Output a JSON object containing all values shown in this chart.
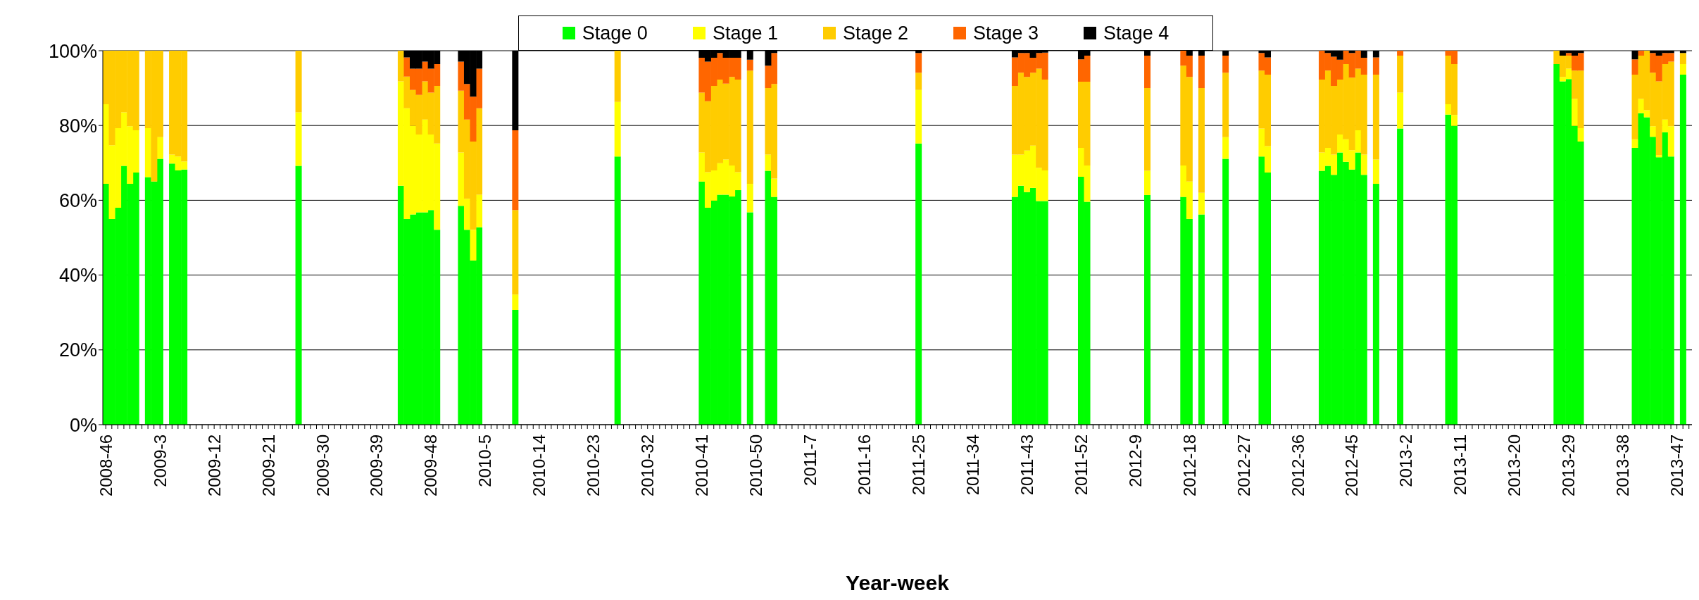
{
  "chart_data": {
    "type": "bar",
    "stacked": true,
    "xlabel": "Year-week",
    "legend": "top",
    "grid": "y",
    "ylim": [
      0,
      100
    ],
    "yticks": [
      {
        "value": 0,
        "label": "0%"
      },
      {
        "value": 20,
        "label": "20%"
      },
      {
        "value": 40,
        "label": "40%"
      },
      {
        "value": 60,
        "label": "60%"
      },
      {
        "value": 80,
        "label": "80%"
      },
      {
        "value": 100,
        "label": "100%"
      }
    ],
    "categories": [
      "2008-46",
      null,
      null,
      null,
      null,
      null,
      null,
      null,
      null,
      "2009-3",
      null,
      null,
      null,
      null,
      null,
      null,
      null,
      null,
      "2009-12",
      null,
      null,
      null,
      null,
      null,
      null,
      null,
      null,
      "2009-21",
      null,
      null,
      null,
      null,
      null,
      null,
      null,
      null,
      "2009-30",
      null,
      null,
      null,
      null,
      null,
      null,
      null,
      null,
      "2009-39",
      null,
      null,
      null,
      null,
      null,
      null,
      null,
      null,
      "2009-48",
      null,
      null,
      null,
      null,
      null,
      null,
      null,
      null,
      "2010-5",
      null,
      null,
      null,
      null,
      null,
      null,
      null,
      null,
      "2010-14",
      null,
      null,
      null,
      null,
      null,
      null,
      null,
      null,
      "2010-23",
      null,
      null,
      null,
      null,
      null,
      null,
      null,
      null,
      "2010-32",
      null,
      null,
      null,
      null,
      null,
      null,
      null,
      null,
      "2010-41",
      null,
      null,
      null,
      null,
      null,
      null,
      null,
      null,
      "2010-50",
      null,
      null,
      null,
      null,
      null,
      null,
      null,
      null,
      "2011-7",
      null,
      null,
      null,
      null,
      null,
      null,
      null,
      null,
      "2011-16",
      null,
      null,
      null,
      null,
      null,
      null,
      null,
      null,
      "2011-25",
      null,
      null,
      null,
      null,
      null,
      null,
      null,
      null,
      "2011-34",
      null,
      null,
      null,
      null,
      null,
      null,
      null,
      null,
      "2011-43",
      null,
      null,
      null,
      null,
      null,
      null,
      null,
      null,
      "2011-52",
      null,
      null,
      null,
      null,
      null,
      null,
      null,
      null,
      "2012-9",
      null,
      null,
      null,
      null,
      null,
      null,
      null,
      null,
      "2012-18",
      null,
      null,
      null,
      null,
      null,
      null,
      null,
      null,
      "2012-27",
      null,
      null,
      null,
      null,
      null,
      null,
      null,
      null,
      "2012-36",
      null,
      null,
      null,
      null,
      null,
      null,
      null,
      null,
      "2012-45",
      null,
      null,
      null,
      null,
      null,
      null,
      null,
      null,
      "2013-2",
      null,
      null,
      null,
      null,
      null,
      null,
      null,
      null,
      "2013-11",
      null,
      null,
      null,
      null,
      null,
      null,
      null,
      null,
      "2013-20",
      null,
      null,
      null,
      null,
      null,
      null,
      null,
      null,
      "2013-29",
      null,
      null,
      null,
      null,
      null,
      null,
      null,
      null,
      "2013-38",
      null,
      null,
      null,
      null,
      null,
      null,
      null,
      null,
      "2013-47",
      null,
      null
    ],
    "series": [
      {
        "name": "Stage 0",
        "color": "#00ff00",
        "values": [
          64.4,
          55,
          58,
          69.2,
          64.4,
          67.4,
          null,
          66.2,
          65,
          71.1,
          null,
          69.8,
          68,
          68.2,
          null,
          null,
          null,
          null,
          null,
          null,
          null,
          null,
          null,
          null,
          null,
          null,
          null,
          null,
          null,
          null,
          null,
          null,
          69.2,
          null,
          null,
          null,
          null,
          null,
          null,
          null,
          null,
          null,
          null,
          null,
          null,
          null,
          null,
          null,
          null,
          63.9,
          55,
          56.2,
          56.8,
          56.8,
          57.4,
          52.1,
          null,
          null,
          null,
          58.5,
          52.1,
          43.9,
          52.8,
          null,
          null,
          null,
          null,
          null,
          30.7,
          null,
          null,
          null,
          null,
          null,
          null,
          null,
          null,
          null,
          null,
          null,
          null,
          null,
          null,
          null,
          null,
          71.7,
          null,
          null,
          null,
          null,
          null,
          null,
          null,
          null,
          null,
          null,
          null,
          null,
          null,
          65,
          58,
          59.9,
          61.5,
          61.5,
          61,
          62.7,
          null,
          56.8,
          null,
          null,
          67.9,
          60.9,
          null,
          null,
          null,
          null,
          null,
          null,
          null,
          null,
          null,
          null,
          null,
          null,
          null,
          null,
          null,
          null,
          null,
          null,
          null,
          null,
          null,
          null,
          null,
          75.2,
          null,
          null,
          null,
          null,
          null,
          null,
          null,
          null,
          null,
          null,
          null,
          null,
          null,
          null,
          null,
          60.9,
          63.9,
          62.2,
          63.3,
          59.8,
          59.8,
          null,
          null,
          null,
          null,
          null,
          66.3,
          59.6,
          null,
          null,
          null,
          null,
          null,
          null,
          null,
          null,
          null,
          61.4,
          null,
          null,
          null,
          null,
          null,
          60.9,
          55,
          null,
          56.2,
          null,
          null,
          null,
          71.1,
          null,
          null,
          null,
          null,
          null,
          71.7,
          67.4,
          null,
          null,
          null,
          null,
          null,
          null,
          null,
          null,
          67.9,
          69.2,
          66.8,
          72.8,
          70.3,
          68.2,
          72.8,
          66.8,
          null,
          64.4,
          null,
          null,
          null,
          79.2,
          null,
          null,
          null,
          null,
          null,
          null,
          null,
          82.9,
          79.9,
          null,
          null,
          null,
          null,
          null,
          null,
          null,
          null,
          null,
          null,
          null,
          null,
          null,
          null,
          null,
          null,
          96.4,
          91.8,
          92.4,
          79.9,
          75.7,
          null,
          null,
          null,
          null,
          null,
          null,
          null,
          null,
          74,
          83.3,
          82.2,
          77,
          71.5,
          78.2,
          71.7,
          null,
          93.6,
          null
        ]
      },
      {
        "name": "Stage 1",
        "color": "#ffff00",
        "values": [
          21.3,
          19.7,
          21.3,
          14.3,
          15.4,
          11.3,
          null,
          13.1,
          0,
          5.8,
          null,
          2.4,
          3.7,
          2.2,
          null,
          null,
          null,
          null,
          null,
          null,
          null,
          null,
          null,
          null,
          null,
          null,
          null,
          null,
          null,
          null,
          null,
          null,
          14.3,
          null,
          null,
          null,
          null,
          null,
          null,
          null,
          null,
          null,
          null,
          null,
          null,
          null,
          null,
          null,
          null,
          27.9,
          29.6,
          23.7,
          20.8,
          24.8,
          20.2,
          23.1,
          null,
          null,
          null,
          14.3,
          8.3,
          8.2,
          8.7,
          null,
          null,
          null,
          null,
          null,
          4.1,
          null,
          null,
          null,
          null,
          null,
          null,
          null,
          null,
          null,
          null,
          null,
          null,
          null,
          null,
          null,
          null,
          14.6,
          null,
          null,
          null,
          null,
          null,
          null,
          null,
          null,
          null,
          null,
          null,
          null,
          null,
          7.8,
          9.5,
          8.1,
          8.4,
          9.4,
          8.3,
          4.8,
          null,
          7.6,
          null,
          null,
          4.3,
          4.9,
          null,
          null,
          null,
          null,
          null,
          null,
          null,
          null,
          null,
          null,
          null,
          null,
          null,
          null,
          null,
          null,
          null,
          null,
          null,
          null,
          null,
          null,
          null,
          14.3,
          null,
          null,
          null,
          null,
          null,
          null,
          null,
          null,
          null,
          null,
          null,
          null,
          null,
          null,
          null,
          11.3,
          8.3,
          11.1,
          11.3,
          8.9,
          8.2,
          null,
          null,
          null,
          null,
          null,
          7.7,
          9.7,
          null,
          null,
          null,
          null,
          null,
          null,
          null,
          null,
          null,
          6.5,
          null,
          null,
          null,
          null,
          null,
          8.4,
          10,
          null,
          5.8,
          null,
          null,
          null,
          5.8,
          null,
          null,
          null,
          null,
          null,
          7.5,
          7.1,
          null,
          null,
          null,
          null,
          null,
          null,
          null,
          null,
          4.9,
          4.8,
          5.4,
          4.8,
          6,
          5.2,
          5.9,
          5.4,
          null,
          6.5,
          null,
          null,
          null,
          9.6,
          null,
          null,
          null,
          null,
          null,
          null,
          null,
          2.8,
          2.9,
          null,
          null,
          null,
          null,
          null,
          null,
          null,
          null,
          null,
          null,
          null,
          null,
          null,
          null,
          null,
          null,
          0,
          1.2,
          2.8,
          7.2,
          3.6,
          null,
          null,
          null,
          null,
          null,
          null,
          null,
          null,
          2.3,
          3.8,
          1.9,
          2.8,
          0.6,
          3.4,
          8.1,
          null,
          2.8,
          null
        ]
      },
      {
        "name": "Stage 2",
        "color": "#ffcc00",
        "values": [
          14.3,
          25.3,
          20.7,
          16.5,
          20.2,
          21.3,
          null,
          20.7,
          35,
          23.1,
          null,
          27.8,
          28.3,
          29.6,
          null,
          null,
          null,
          null,
          null,
          null,
          null,
          null,
          null,
          null,
          null,
          null,
          null,
          null,
          null,
          null,
          null,
          null,
          16.5,
          null,
          null,
          null,
          null,
          null,
          null,
          null,
          null,
          null,
          null,
          null,
          null,
          null,
          null,
          null,
          null,
          8.2,
          8.5,
          9.6,
          10.6,
          10.2,
          11.2,
          15.4,
          null,
          null,
          null,
          16.5,
          21.2,
          23.6,
          23.1,
          null,
          null,
          null,
          null,
          null,
          22.6,
          null,
          null,
          null,
          null,
          null,
          null,
          null,
          null,
          null,
          null,
          null,
          null,
          null,
          null,
          null,
          null,
          13.7,
          null,
          null,
          null,
          null,
          null,
          null,
          null,
          null,
          null,
          null,
          null,
          null,
          null,
          16,
          19,
          22.6,
          22.4,
          20.3,
          23.7,
          24.8,
          null,
          30.3,
          null,
          null,
          17.8,
          25.3,
          null,
          null,
          null,
          null,
          null,
          null,
          null,
          null,
          null,
          null,
          null,
          null,
          null,
          null,
          null,
          null,
          null,
          null,
          null,
          null,
          null,
          null,
          null,
          4.6,
          null,
          null,
          null,
          null,
          null,
          null,
          null,
          null,
          null,
          null,
          null,
          null,
          null,
          null,
          null,
          18.4,
          21.9,
          19.7,
          19.5,
          26.5,
          24.3,
          null,
          null,
          null,
          null,
          null,
          17.7,
          22.4,
          null,
          null,
          null,
          null,
          null,
          null,
          null,
          null,
          null,
          22.1,
          null,
          null,
          null,
          null,
          null,
          26.7,
          28,
          null,
          28,
          null,
          null,
          null,
          17.2,
          null,
          null,
          null,
          null,
          null,
          15.5,
          19.1,
          null,
          null,
          null,
          null,
          null,
          null,
          null,
          null,
          19.5,
          20.7,
          18.4,
          14.7,
          20.1,
          19.4,
          16.5,
          21.4,
          null,
          22.7,
          null,
          null,
          null,
          9.9,
          null,
          null,
          null,
          null,
          null,
          null,
          null,
          13,
          13.6,
          null,
          null,
          null,
          null,
          null,
          null,
          null,
          null,
          null,
          null,
          null,
          null,
          null,
          null,
          null,
          null,
          3.6,
          5.7,
          3.5,
          7.6,
          15.4,
          null,
          null,
          null,
          null,
          null,
          null,
          null,
          null,
          17.3,
          11.6,
          15.9,
          14.3,
          19.7,
          14.8,
          17.3,
          null,
          3,
          null
        ]
      },
      {
        "name": "Stage 3",
        "color": "#ff6600",
        "values": [
          0,
          0,
          0,
          0,
          0,
          0,
          null,
          0,
          0,
          0,
          null,
          0,
          0,
          0,
          null,
          null,
          null,
          null,
          null,
          null,
          null,
          null,
          null,
          null,
          null,
          null,
          null,
          null,
          null,
          null,
          null,
          null,
          0,
          null,
          null,
          null,
          null,
          null,
          null,
          null,
          null,
          null,
          null,
          null,
          null,
          null,
          null,
          null,
          null,
          0,
          5.1,
          5.7,
          7,
          5.3,
          6.4,
          5.8,
          null,
          null,
          null,
          7.8,
          9.5,
          12,
          10.6,
          null,
          null,
          null,
          null,
          null,
          21.3,
          null,
          null,
          null,
          null,
          null,
          null,
          null,
          null,
          null,
          null,
          null,
          null,
          null,
          null,
          null,
          null,
          0,
          null,
          null,
          null,
          null,
          null,
          null,
          null,
          null,
          null,
          null,
          null,
          null,
          null,
          9.3,
          10.6,
          7.5,
          7.1,
          6.9,
          5.1,
          5.8,
          null,
          2.9,
          null,
          null,
          6,
          8.3,
          null,
          null,
          null,
          null,
          null,
          null,
          null,
          null,
          null,
          null,
          null,
          null,
          null,
          null,
          null,
          null,
          null,
          null,
          null,
          null,
          null,
          null,
          null,
          5.3,
          null,
          null,
          null,
          null,
          null,
          null,
          null,
          null,
          null,
          null,
          null,
          null,
          null,
          null,
          null,
          7.6,
          5.3,
          6.4,
          4,
          4.2,
          7.2,
          null,
          null,
          null,
          null,
          null,
          6,
          7,
          null,
          null,
          null,
          null,
          null,
          null,
          null,
          null,
          null,
          8.7,
          null,
          null,
          null,
          null,
          null,
          4,
          5.7,
          null,
          8.7,
          null,
          null,
          null,
          4.6,
          null,
          null,
          null,
          null,
          null,
          4.7,
          4.6,
          null,
          null,
          null,
          null,
          null,
          null,
          null,
          null,
          7.7,
          4.7,
          7.8,
          5.3,
          3.6,
          6.6,
          4.8,
          4.5,
          null,
          4.6,
          null,
          null,
          null,
          1.3,
          null,
          null,
          null,
          null,
          null,
          null,
          null,
          1.3,
          3.6,
          null,
          null,
          null,
          null,
          null,
          null,
          null,
          null,
          null,
          null,
          null,
          null,
          null,
          null,
          null,
          null,
          0,
          0,
          0.7,
          4,
          4.7,
          null,
          null,
          null,
          null,
          null,
          null,
          null,
          null,
          4.1,
          1.3,
          0,
          5.3,
          6.9,
          3,
          2.3,
          null,
          0,
          null
        ]
      },
      {
        "name": "Stage 4",
        "color": "#000000",
        "values": [
          0,
          0,
          0,
          0,
          0,
          0,
          null,
          0,
          0,
          0,
          null,
          0,
          0,
          0,
          null,
          null,
          null,
          null,
          null,
          null,
          null,
          null,
          null,
          null,
          null,
          null,
          null,
          null,
          null,
          null,
          null,
          null,
          0,
          null,
          null,
          null,
          null,
          null,
          null,
          null,
          null,
          null,
          null,
          null,
          null,
          null,
          null,
          null,
          null,
          0,
          1.8,
          4.8,
          4.8,
          2.9,
          4.8,
          3.6,
          null,
          null,
          null,
          2.9,
          8.9,
          12.3,
          4.8,
          null,
          null,
          null,
          null,
          null,
          21.3,
          null,
          null,
          null,
          null,
          null,
          null,
          null,
          null,
          null,
          null,
          null,
          null,
          null,
          null,
          null,
          null,
          0,
          null,
          null,
          null,
          null,
          null,
          null,
          null,
          null,
          null,
          null,
          null,
          null,
          null,
          1.9,
          2.9,
          1.9,
          0.6,
          1.9,
          1.9,
          1.9,
          null,
          2.4,
          null,
          null,
          4,
          0.6,
          null,
          null,
          null,
          null,
          null,
          null,
          null,
          null,
          null,
          null,
          null,
          null,
          null,
          null,
          null,
          null,
          null,
          null,
          null,
          null,
          null,
          null,
          null,
          0.6,
          null,
          null,
          null,
          null,
          null,
          null,
          null,
          null,
          null,
          null,
          null,
          null,
          null,
          null,
          null,
          1.8,
          0.6,
          0.6,
          1.9,
          0.6,
          0.5,
          null,
          null,
          null,
          null,
          null,
          2.3,
          1.3,
          null,
          null,
          null,
          null,
          null,
          null,
          null,
          null,
          null,
          1.3,
          null,
          null,
          null,
          null,
          null,
          0,
          1.3,
          null,
          1.3,
          null,
          null,
          null,
          1.3,
          null,
          null,
          null,
          null,
          null,
          0.6,
          1.8,
          null,
          null,
          null,
          null,
          null,
          null,
          null,
          null,
          0,
          0.6,
          1.6,
          2.4,
          0,
          0.6,
          0,
          1.9,
          null,
          1.8,
          null,
          null,
          null,
          0,
          null,
          null,
          null,
          null,
          null,
          null,
          null,
          0,
          0,
          null,
          null,
          null,
          null,
          null,
          null,
          null,
          null,
          null,
          null,
          null,
          null,
          null,
          null,
          null,
          null,
          0,
          1.3,
          0.6,
          1.3,
          0.6,
          null,
          null,
          null,
          null,
          null,
          null,
          null,
          null,
          2.3,
          0,
          0,
          0.6,
          1.3,
          0.6,
          0.6,
          null,
          0.6,
          null
        ]
      }
    ]
  }
}
